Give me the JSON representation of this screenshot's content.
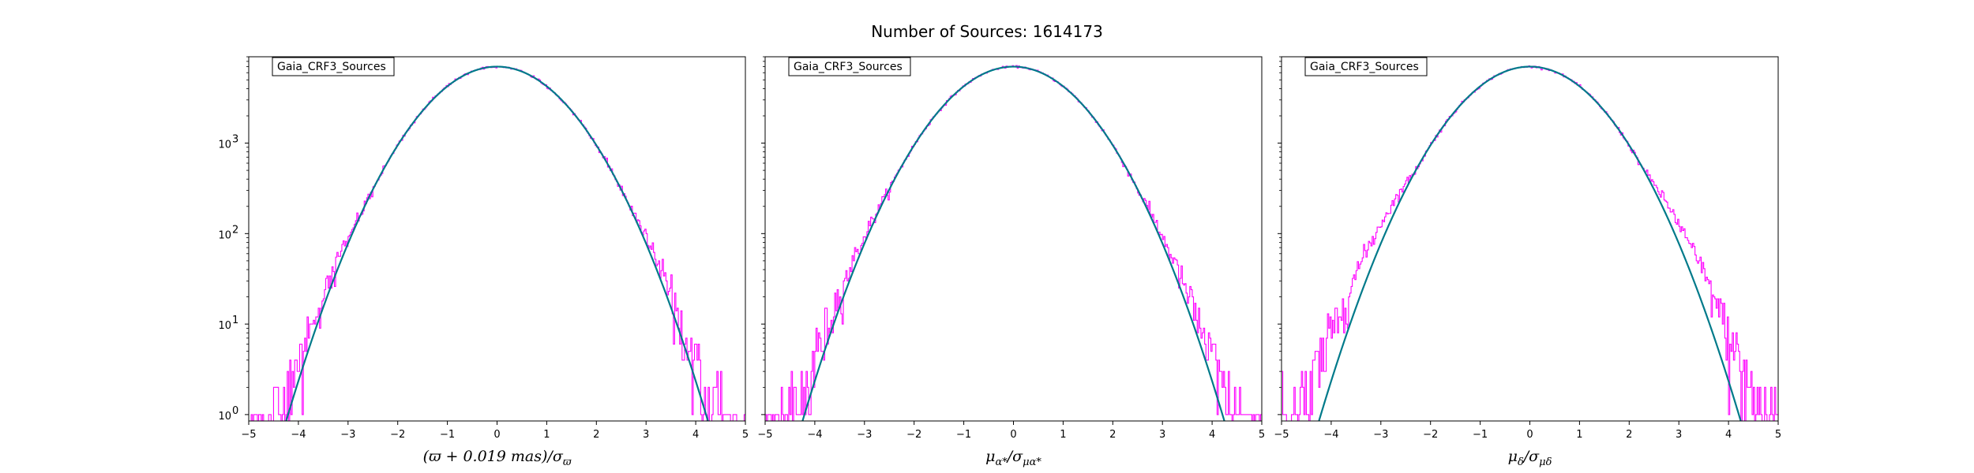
{
  "figure": {
    "suptitle": "Number of Sources: 1614173",
    "colors": {
      "histogram": "#ff00ff",
      "model": "#007a8a",
      "axes": "#000000"
    }
  },
  "chart_data": [
    {
      "type": "histogram-with-model",
      "legend": "Gaia_CRF3_Sources",
      "legend_position": "top-left",
      "xlabel": "(ϖ + 0.019 mas)/σϖ",
      "xlabel_parts": {
        "a": "(ϖ + 0.019 ",
        "b": "mas",
        "c": ")/σ",
        "sub": "ϖ"
      },
      "xlim": [
        -5,
        5
      ],
      "ylim": [
        0.85,
        9000
      ],
      "yscale": "log",
      "xticks": [
        "−5",
        "−4",
        "−3",
        "−2",
        "−1",
        "0",
        "1",
        "2",
        "3",
        "4",
        "5"
      ],
      "yticks": [
        {
          "v": 1,
          "label": "10",
          "exp": "0"
        },
        {
          "v": 10,
          "label": "10",
          "exp": "1"
        },
        {
          "v": 100,
          "label": "10",
          "exp": "2"
        },
        {
          "v": 1000,
          "label": "10",
          "exp": "3"
        }
      ],
      "model": {
        "peak": 7000,
        "mean": 0,
        "sigma": 1.0
      },
      "histogram_tail_excess": 1.12,
      "histogram_tail_start": 2.6
    },
    {
      "type": "histogram-with-model",
      "legend": "Gaia_CRF3_Sources",
      "legend_position": "top-left",
      "xlabel": "μα*/σμα*",
      "xlabel_parts": {
        "a": "μ",
        "sub1": "α*",
        "b": "/σ",
        "sub2": "μα*"
      },
      "xlim": [
        -5,
        5
      ],
      "ylim": [
        0.85,
        9000
      ],
      "yscale": "log",
      "xticks": [
        "−5",
        "−4",
        "−3",
        "−2",
        "−1",
        "0",
        "1",
        "2",
        "3",
        "4",
        "5"
      ],
      "yticks": [
        {
          "v": 1,
          "label": "10",
          "exp": "0"
        },
        {
          "v": 10,
          "label": "10",
          "exp": "1"
        },
        {
          "v": 100,
          "label": "10",
          "exp": "2"
        },
        {
          "v": 1000,
          "label": "10",
          "exp": "3"
        }
      ],
      "model": {
        "peak": 7000,
        "mean": 0,
        "sigma": 1.0
      },
      "histogram_tail_excess": 1.12,
      "histogram_tail_start": 2.5
    },
    {
      "type": "histogram-with-model",
      "legend": "Gaia_CRF3_Sources",
      "legend_position": "top-left",
      "xlabel": "μδ/σμδ",
      "xlabel_parts": {
        "a": "μ",
        "sub1": "δ",
        "b": "/σ",
        "sub2": "μδ"
      },
      "xlim": [
        -5,
        5
      ],
      "ylim": [
        0.85,
        9000
      ],
      "yscale": "log",
      "xticks": [
        "−5",
        "−4",
        "−3",
        "−2",
        "−1",
        "0",
        "1",
        "2",
        "3",
        "4",
        "5"
      ],
      "yticks": [
        {
          "v": 1,
          "label": "10",
          "exp": "0"
        },
        {
          "v": 10,
          "label": "10",
          "exp": "1"
        },
        {
          "v": 100,
          "label": "10",
          "exp": "2"
        },
        {
          "v": 1000,
          "label": "10",
          "exp": "3"
        }
      ],
      "model": {
        "peak": 7000,
        "mean": 0,
        "sigma": 1.0
      },
      "histogram_tail_excess": 1.25,
      "histogram_tail_start": 2.3
    }
  ]
}
